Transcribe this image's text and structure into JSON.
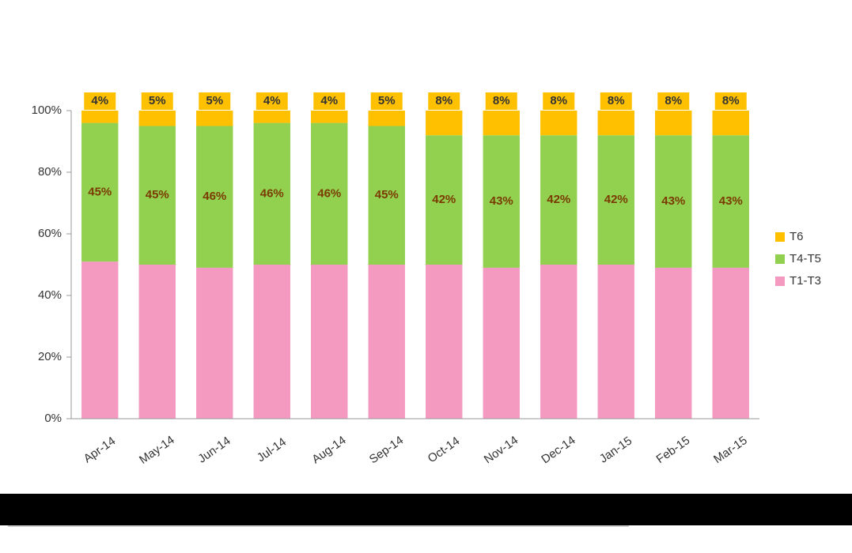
{
  "chart_data": {
    "type": "stacked_bar",
    "categories": [
      "Apr-14",
      "May-14",
      "Jun-14",
      "Jul-14",
      "Aug-14",
      "Sep-14",
      "Oct-14",
      "Nov-14",
      "Dec-14",
      "Jan-15",
      "Feb-15",
      "Mar-15"
    ],
    "series": [
      {
        "name": "T1-T3",
        "color": "#f49ac1",
        "values": [
          51,
          50,
          49,
          50,
          50,
          50,
          50,
          49,
          50,
          50,
          49,
          49
        ]
      },
      {
        "name": "T4-T5",
        "color": "#92d050",
        "values": [
          45,
          45,
          46,
          46,
          46,
          45,
          42,
          43,
          42,
          42,
          43,
          43
        ],
        "value_labels": [
          "45%",
          "45%",
          "46%",
          "46%",
          "46%",
          "45%",
          "42%",
          "43%",
          "42%",
          "42%",
          "43%",
          "43%"
        ]
      },
      {
        "name": "T6",
        "color": "#ffc000",
        "values": [
          4,
          5,
          5,
          4,
          4,
          5,
          8,
          8,
          8,
          8,
          8,
          8
        ],
        "value_labels": [
          "4%",
          "5%",
          "5%",
          "4%",
          "4%",
          "5%",
          "8%",
          "8%",
          "8%",
          "8%",
          "8%",
          "8%"
        ]
      }
    ],
    "ylim": [
      0,
      100
    ],
    "yticks": [
      {
        "value": 0,
        "label": "0%"
      },
      {
        "value": 20,
        "label": "20%"
      },
      {
        "value": 40,
        "label": "40%"
      },
      {
        "value": 60,
        "label": "60%"
      },
      {
        "value": 80,
        "label": "80%"
      },
      {
        "value": 100,
        "label": "100%"
      }
    ],
    "legend": "right"
  }
}
